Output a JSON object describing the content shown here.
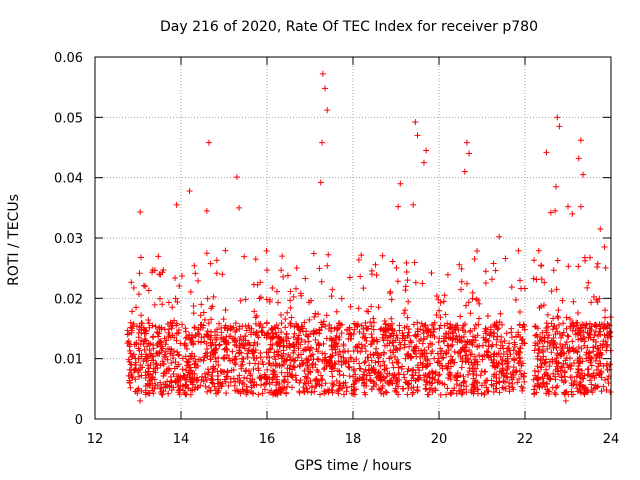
{
  "chart_data": {
    "type": "scatter",
    "title": "Day 216 of 2020, Rate Of TEC Index for receiver p780",
    "xlabel": "GPS time / hours",
    "ylabel": "ROTI / TECUs",
    "xlim": [
      12,
      24
    ],
    "ylim": [
      0,
      0.06
    ],
    "xticks": [
      12,
      14,
      16,
      18,
      20,
      22,
      24
    ],
    "xtick_labels": [
      "12",
      "14",
      "16",
      "18",
      "20",
      "22",
      "24"
    ],
    "yticks": [
      0,
      0.01,
      0.02,
      0.03,
      0.04,
      0.05,
      0.06
    ],
    "ytick_labels": [
      "0",
      "0.01",
      "0.02",
      "0.03",
      "0.04",
      "0.05",
      "0.06"
    ],
    "grid": true,
    "marker": "+",
    "color": "#ff0000",
    "data_start_hour": 12.75,
    "data_end_hour": 24.0,
    "baseline_roti_range": [
      0.004,
      0.02
    ],
    "notable_points": [
      {
        "x": 13.05,
        "y": 0.0343
      },
      {
        "x": 13.9,
        "y": 0.0355
      },
      {
        "x": 14.2,
        "y": 0.0378
      },
      {
        "x": 14.65,
        "y": 0.0458
      },
      {
        "x": 14.6,
        "y": 0.0345
      },
      {
        "x": 15.3,
        "y": 0.0401
      },
      {
        "x": 15.35,
        "y": 0.035
      },
      {
        "x": 17.3,
        "y": 0.0572
      },
      {
        "x": 17.35,
        "y": 0.0548
      },
      {
        "x": 17.4,
        "y": 0.0512
      },
      {
        "x": 17.28,
        "y": 0.0458
      },
      {
        "x": 17.25,
        "y": 0.0392
      },
      {
        "x": 19.45,
        "y": 0.0492
      },
      {
        "x": 19.5,
        "y": 0.047
      },
      {
        "x": 19.7,
        "y": 0.0445
      },
      {
        "x": 19.65,
        "y": 0.0425
      },
      {
        "x": 19.1,
        "y": 0.039
      },
      {
        "x": 19.05,
        "y": 0.0352
      },
      {
        "x": 19.4,
        "y": 0.0355
      },
      {
        "x": 20.65,
        "y": 0.0458
      },
      {
        "x": 20.7,
        "y": 0.044
      },
      {
        "x": 20.6,
        "y": 0.041
      },
      {
        "x": 21.4,
        "y": 0.0302
      },
      {
        "x": 22.5,
        "y": 0.0442
      },
      {
        "x": 22.75,
        "y": 0.05
      },
      {
        "x": 22.8,
        "y": 0.0485
      },
      {
        "x": 22.72,
        "y": 0.0385
      },
      {
        "x": 22.7,
        "y": 0.0345
      },
      {
        "x": 22.6,
        "y": 0.0342
      },
      {
        "x": 23.3,
        "y": 0.0462
      },
      {
        "x": 23.25,
        "y": 0.0432
      },
      {
        "x": 23.35,
        "y": 0.0405
      },
      {
        "x": 23.3,
        "y": 0.0352
      },
      {
        "x": 23.0,
        "y": 0.0352
      },
      {
        "x": 23.1,
        "y": 0.034
      },
      {
        "x": 23.75,
        "y": 0.0315
      },
      {
        "x": 23.85,
        "y": 0.0285
      },
      {
        "x": 13.05,
        "y": 0.003
      },
      {
        "x": 22.95,
        "y": 0.003
      }
    ]
  }
}
